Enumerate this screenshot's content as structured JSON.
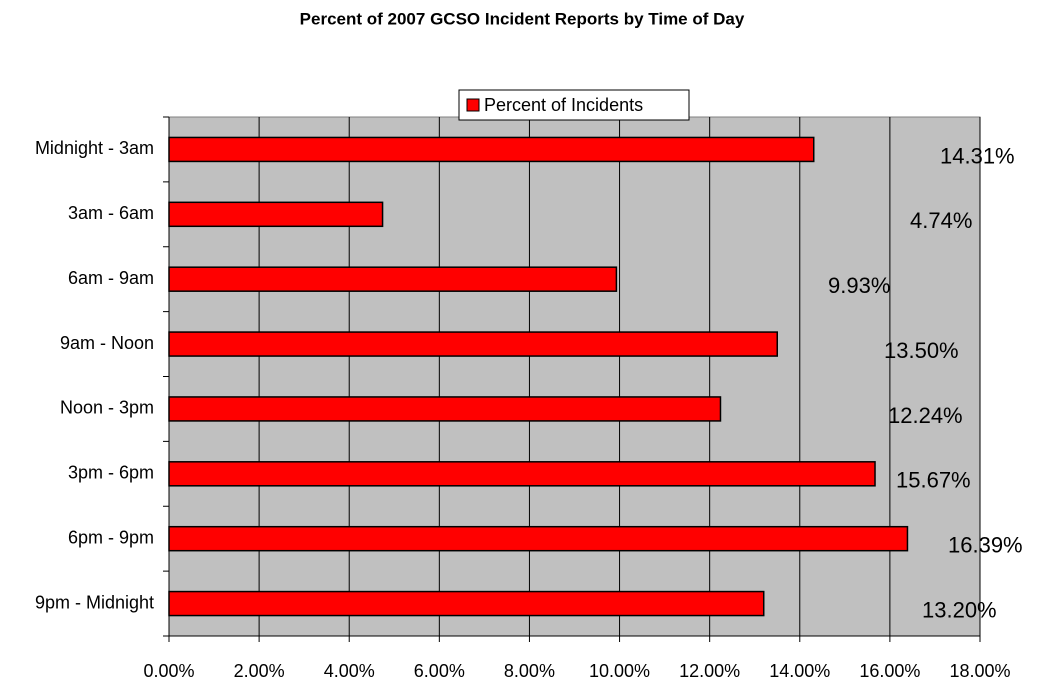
{
  "chart_data": {
    "type": "bar",
    "orientation": "horizontal",
    "title": "Percent of 2007 GCSO Incident Reports by Time of Day",
    "categories": [
      "Midnight - 3am",
      "3am - 6am",
      "6am - 9am",
      "9am - Noon",
      "Noon - 3pm",
      "3pm - 6pm",
      "6pm - 9pm",
      "9pm - Midnight"
    ],
    "series": [
      {
        "name": "Percent of Incidents",
        "color": "#ff0000",
        "values": [
          14.31,
          4.74,
          9.93,
          13.5,
          12.24,
          15.67,
          16.39,
          13.2
        ],
        "value_labels": [
          "14.31%",
          "4.74%",
          "9.93%",
          "13.50%",
          "12.24%",
          "15.67%",
          "16.39%",
          "13.20%"
        ]
      }
    ],
    "xlim": [
      0,
      18
    ],
    "xticks": [
      {
        "value": 0,
        "label": "0.00%"
      },
      {
        "value": 2,
        "label": "2.00%"
      },
      {
        "value": 4,
        "label": "4.00%"
      },
      {
        "value": 6,
        "label": "6.00%"
      },
      {
        "value": 8,
        "label": "8.00%"
      },
      {
        "value": 10,
        "label": "10.00%"
      },
      {
        "value": 12,
        "label": "12.00%"
      },
      {
        "value": 14,
        "label": "14.00%"
      },
      {
        "value": 16,
        "label": "16.00%"
      },
      {
        "value": 18,
        "label": "18.00%"
      }
    ],
    "grid": true,
    "legend": "top",
    "background": "#c0c0c0"
  }
}
